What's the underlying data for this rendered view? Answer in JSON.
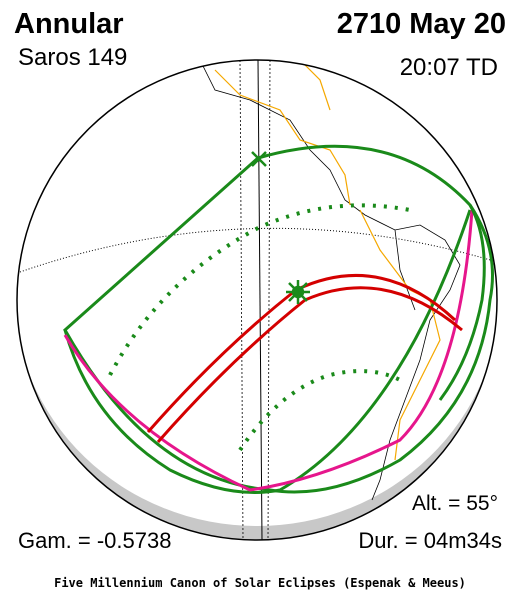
{
  "header": {
    "eclipse_type": "Annular",
    "saros": "Saros 149",
    "date": "2710 May 20",
    "time": "20:07 TD"
  },
  "parameters": {
    "altitude": "Alt. = 55°",
    "gamma": "Gam. = -0.5738",
    "duration": "Dur. = 04m34s"
  },
  "footer": "Five Millennium Canon of Solar Eclipses (Espenak & Meeus)"
}
